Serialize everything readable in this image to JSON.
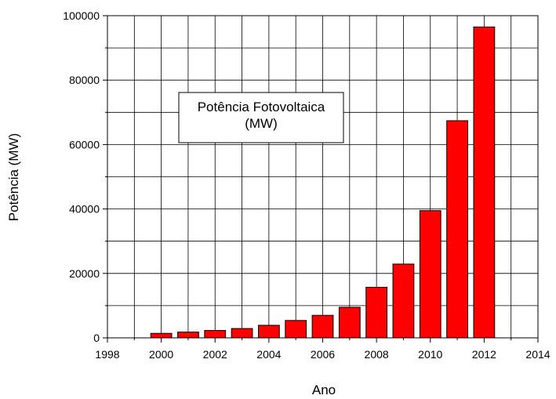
{
  "chart_data": {
    "type": "bar",
    "x": [
      2000,
      2001,
      2002,
      2003,
      2004,
      2005,
      2006,
      2007,
      2008,
      2009,
      2010,
      2011,
      2012
    ],
    "values": [
      1400,
      1800,
      2300,
      2900,
      3900,
      5400,
      7000,
      9500,
      15700,
      22900,
      39500,
      67400,
      96500
    ],
    "xlabel": "Ano",
    "ylabel": "Potência (MW)",
    "xlim": [
      1998,
      2014
    ],
    "ylim": [
      0,
      100000
    ],
    "xticks": [
      "1998",
      "2000",
      "2002",
      "2004",
      "2006",
      "2008",
      "2010",
      "2012",
      "2014"
    ],
    "yticks": [
      "0",
      "20000",
      "40000",
      "60000",
      "80000",
      "100000"
    ],
    "legend": {
      "line1": "Potência Fotovoltaica",
      "line2": "(MW)",
      "placement": "upper-left"
    },
    "grid": true,
    "bar_color": "#ff0000",
    "bar_outline": "#000000"
  }
}
